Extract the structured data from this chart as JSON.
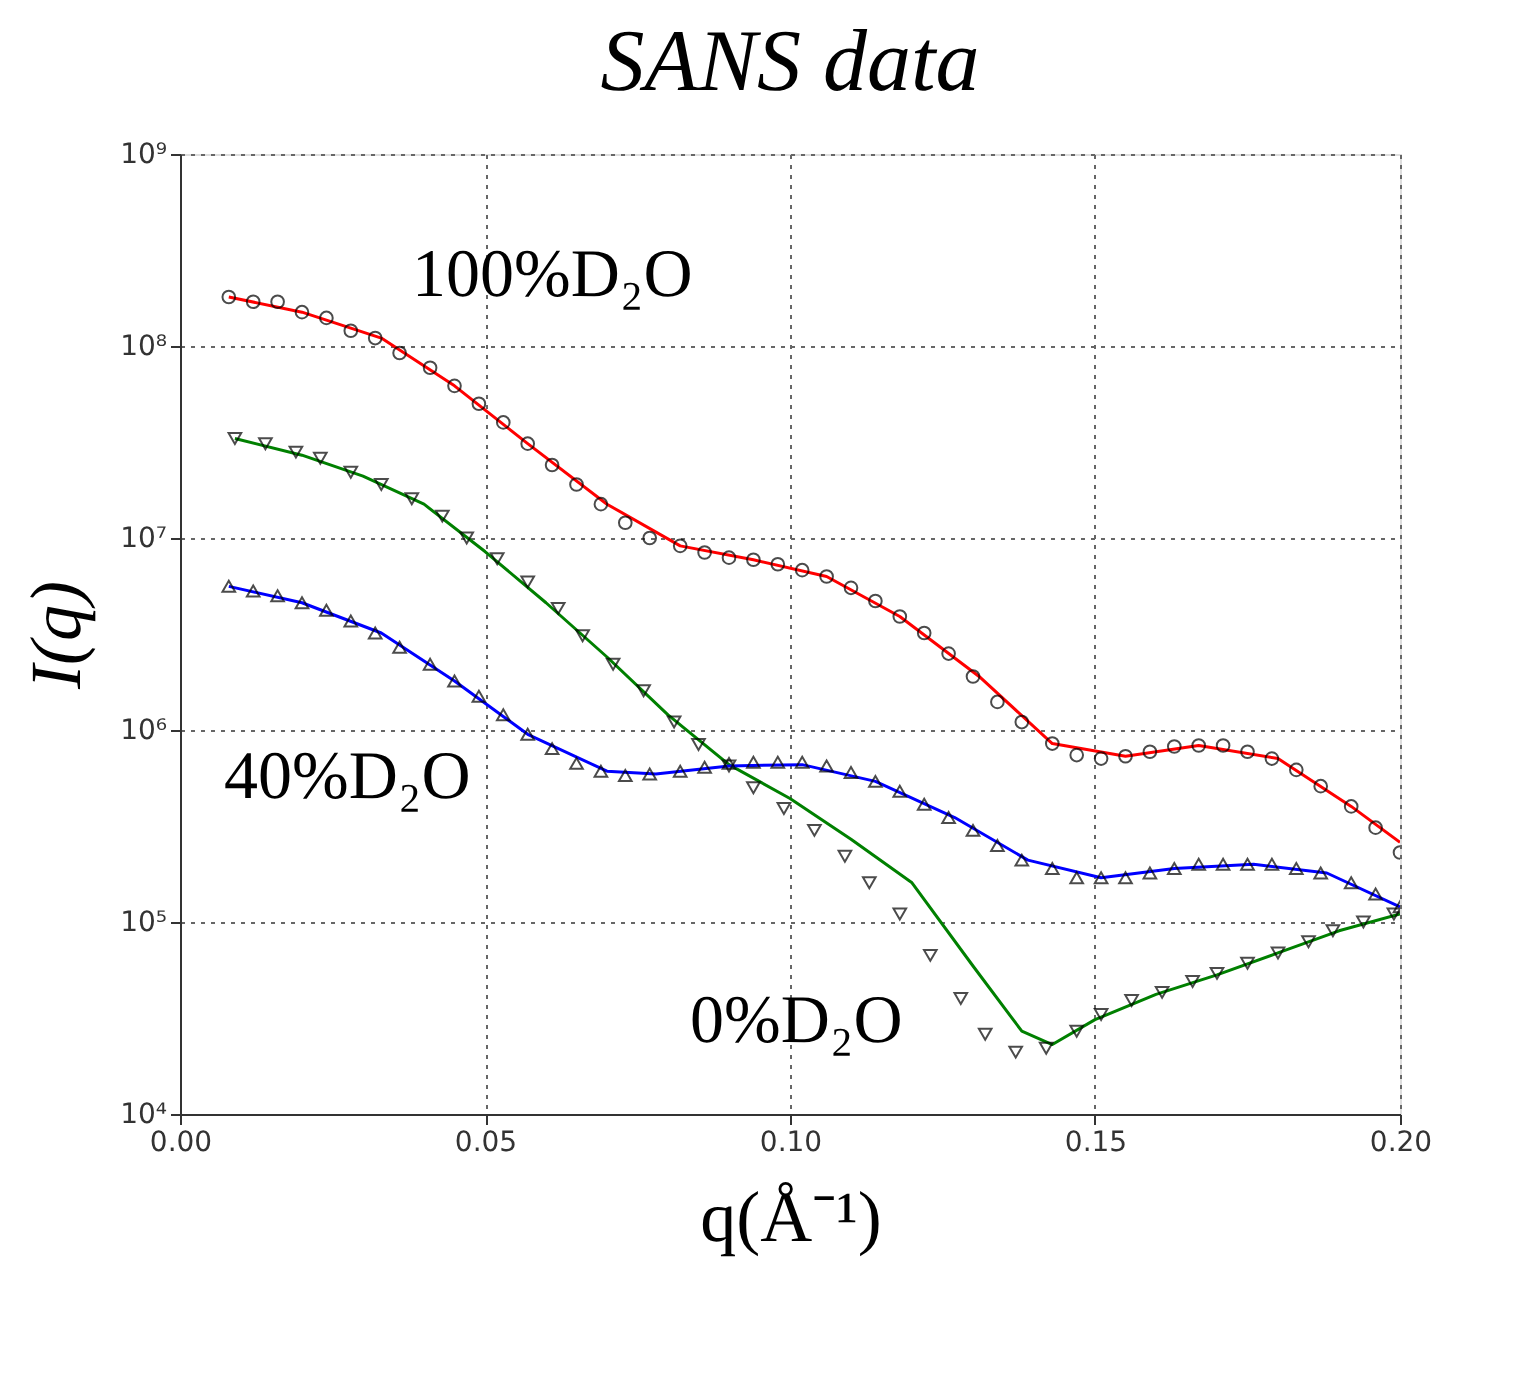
{
  "chart_data": {
    "type": "scatter",
    "title": "SANS data",
    "xlabel": "q(Å⁻¹)",
    "ylabel": "I(q)",
    "xlim": [
      0,
      0.2
    ],
    "ylim": [
      10000,
      1000000000
    ],
    "log": "y",
    "xticks": [
      {
        "value": 0,
        "label": "0.00"
      },
      {
        "value": 0.05,
        "label": "0.05"
      },
      {
        "value": 0.1,
        "label": "0.10"
      },
      {
        "value": 0.15,
        "label": "0.15"
      },
      {
        "value": 0.2,
        "label": "0.20"
      }
    ],
    "yticks": [
      {
        "value": 10000,
        "label": "10⁴"
      },
      {
        "value": 100000,
        "label": "10⁵"
      },
      {
        "value": 1000000,
        "label": "10⁶"
      },
      {
        "value": 10000000,
        "label": "10⁷"
      },
      {
        "value": 100000000,
        "label": "10⁸"
      },
      {
        "value": 1000000000,
        "label": "10⁹"
      }
    ],
    "grid": true,
    "series": [
      {
        "type": "line",
        "color": "#ff0000",
        "line_style": "solid",
        "x": [
          0.008,
          0.02,
          0.033,
          0.045,
          0.057,
          0.07,
          0.082,
          0.094,
          0.106,
          0.118,
          0.131,
          0.143,
          0.155,
          0.167,
          0.18,
          0.192,
          0.2
        ],
        "values": [
          180000000.0,
          150000000.0,
          110000000.0,
          62000000.0,
          31000000.0,
          15000000.0,
          9100000.0,
          7700000.0,
          6300000.0,
          3900000.0,
          1900000.0,
          850000.0,
          730000.0,
          830000.0,
          710000.0,
          400000.0,
          260000.0
        ]
      },
      {
        "type": "line",
        "color": "#008000",
        "line_style": "solid",
        "x": [
          0.009,
          0.02,
          0.03,
          0.04,
          0.05,
          0.06,
          0.07,
          0.08,
          0.09,
          0.1,
          0.11,
          0.12,
          0.13,
          0.138,
          0.143,
          0.15,
          0.16,
          0.17,
          0.18,
          0.19,
          0.2
        ],
        "values": [
          33000000.0,
          27000000.0,
          21000000.0,
          15000000.0,
          8500000.0,
          4600000.0,
          2400000.0,
          1200000.0,
          660000.0,
          440000.0,
          270000.0,
          160000.0,
          59000.0,
          27000.0,
          23000.0,
          31000.0,
          42000.0,
          53000.0,
          69000.0,
          90000.0,
          110000.0
        ]
      },
      {
        "type": "line",
        "color": "#0000ff",
        "line_style": "solid",
        "x": [
          0.008,
          0.02,
          0.033,
          0.045,
          0.057,
          0.07,
          0.078,
          0.09,
          0.102,
          0.114,
          0.127,
          0.139,
          0.151,
          0.163,
          0.176,
          0.188,
          0.2
        ],
        "values": [
          5600000.0,
          4600000.0,
          3200000.0,
          1800000.0,
          950000.0,
          610000.0,
          590000.0,
          650000.0,
          660000.0,
          540000.0,
          350000.0,
          210000.0,
          170000.0,
          190000.0,
          200000.0,
          180000.0,
          120000.0
        ]
      },
      {
        "color": "#000000",
        "marker": "circle",
        "x": [
          0.008,
          0.012,
          0.016,
          0.02,
          0.024,
          0.028,
          0.032,
          0.036,
          0.041,
          0.045,
          0.049,
          0.053,
          0.057,
          0.061,
          0.065,
          0.069,
          0.073,
          0.077,
          0.082,
          0.086,
          0.09,
          0.094,
          0.098,
          0.102,
          0.106,
          0.11,
          0.114,
          0.118,
          0.122,
          0.126,
          0.13,
          0.134,
          0.138,
          0.143,
          0.147,
          0.151,
          0.155,
          0.159,
          0.163,
          0.167,
          0.171,
          0.175,
          0.179,
          0.183,
          0.187,
          0.192,
          0.196,
          0.2
        ],
        "values": [
          180000000.0,
          170000000.0,
          170000000.0,
          150000000.0,
          140000000.0,
          120000000.0,
          110000000.0,
          92000000.0,
          77000000.0,
          62000000.0,
          50000000.0,
          40000000.0,
          31000000.0,
          24000000.0,
          19000000.0,
          15000000.0,
          12000000.0,
          10000000.0,
          9100000.0,
          8400000.0,
          7900000.0,
          7700000.0,
          7300000.0,
          6800000.0,
          6300000.0,
          5500000.0,
          4700000.0,
          3900000.0,
          3200000.0,
          2500000.0,
          1900000.0,
          1400000.0,
          1100000.0,
          850000.0,
          740000.0,
          710000.0,
          730000.0,
          770000.0,
          820000.0,
          830000.0,
          830000.0,
          770000.0,
          710000.0,
          620000.0,
          510000.0,
          400000.0,
          310000.0,
          230000.0
        ]
      },
      {
        "color": "#000000",
        "marker": "triangle-down",
        "x": [
          0.009,
          0.014,
          0.019,
          0.023,
          0.028,
          0.033,
          0.038,
          0.043,
          0.047,
          0.052,
          0.057,
          0.062,
          0.066,
          0.071,
          0.076,
          0.081,
          0.085,
          0.09,
          0.094,
          0.099,
          0.104,
          0.109,
          0.113,
          0.118,
          0.123,
          0.128,
          0.132,
          0.137,
          0.142,
          0.147,
          0.151,
          0.156,
          0.161,
          0.166,
          0.17,
          0.175,
          0.18,
          0.185,
          0.189,
          0.194,
          0.199
        ],
        "values": [
          33000000.0,
          31000000.0,
          28000000.0,
          26000000.0,
          22000000.0,
          19000000.0,
          16000000.0,
          13000000.0,
          10000000.0,
          7800000.0,
          5900000.0,
          4300000.0,
          3100000.0,
          2200000.0,
          1600000.0,
          1100000.0,
          840000.0,
          650000.0,
          500000.0,
          390000.0,
          300000.0,
          220000.0,
          160000.0,
          110000.0,
          67000.0,
          40000.0,
          26000.0,
          21000.0,
          22000.0,
          27000.0,
          33000.0,
          39000.0,
          43000.0,
          49000.0,
          54000.0,
          61000.0,
          69000.0,
          79000.0,
          90000.0,
          100000.0,
          110000.0
        ]
      },
      {
        "color": "#000000",
        "marker": "triangle",
        "x": [
          0.008,
          0.012,
          0.016,
          0.02,
          0.024,
          0.028,
          0.032,
          0.036,
          0.041,
          0.045,
          0.049,
          0.053,
          0.057,
          0.061,
          0.065,
          0.069,
          0.073,
          0.077,
          0.082,
          0.086,
          0.09,
          0.094,
          0.098,
          0.102,
          0.106,
          0.11,
          0.114,
          0.118,
          0.122,
          0.126,
          0.13,
          0.134,
          0.138,
          0.143,
          0.147,
          0.151,
          0.155,
          0.159,
          0.163,
          0.167,
          0.171,
          0.175,
          0.179,
          0.183,
          0.187,
          0.192,
          0.196,
          0.2
        ],
        "values": [
          5600000.0,
          5300000.0,
          5000000.0,
          4600000.0,
          4200000.0,
          3700000.0,
          3200000.0,
          2700000.0,
          2200000.0,
          1800000.0,
          1500000.0,
          1200000.0,
          950000.0,
          800000.0,
          670000.0,
          610000.0,
          580000.0,
          590000.0,
          610000.0,
          640000.0,
          670000.0,
          680000.0,
          680000.0,
          680000.0,
          650000.0,
          600000.0,
          540000.0,
          480000.0,
          410000.0,
          350000.0,
          300000.0,
          250000.0,
          210000.0,
          190000.0,
          170000.0,
          170000.0,
          170000.0,
          180000.0,
          190000.0,
          200000.0,
          200000.0,
          200000.0,
          200000.0,
          190000.0,
          180000.0,
          160000.0,
          140000.0,
          120000.0
        ]
      }
    ],
    "annotations": [
      "100%D₂O",
      "40%D₂O",
      "0%D₂O"
    ]
  }
}
